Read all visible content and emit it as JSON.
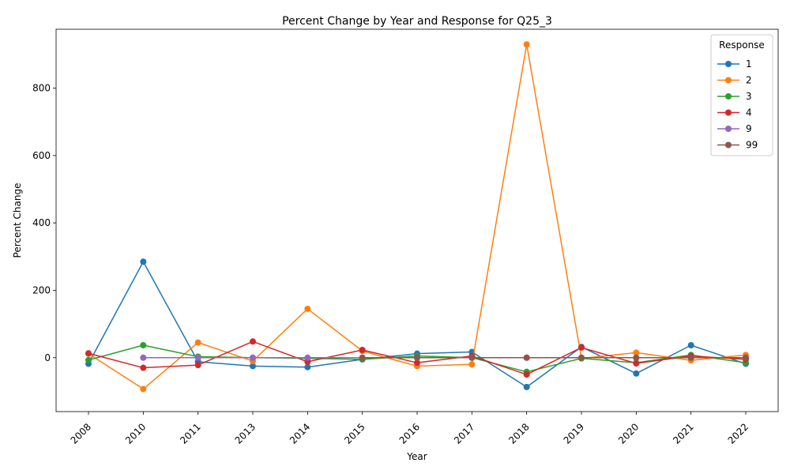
{
  "chart_data": {
    "type": "line",
    "title": "Percent Change by Year and Response for Q25_3",
    "xlabel": "Year",
    "ylabel": "Percent Change",
    "categories": [
      "2008",
      "2010",
      "2011",
      "2013",
      "2014",
      "2015",
      "2016",
      "2017",
      "2018",
      "2019",
      "2020",
      "2021",
      "2022"
    ],
    "yticks": [
      0,
      200,
      400,
      600,
      800
    ],
    "ylim": [
      -160,
      975
    ],
    "legend": {
      "title": "Response",
      "placement": "top-right"
    },
    "grid": false,
    "series": [
      {
        "name": "1",
        "color": "#1f77b4",
        "values": [
          -18,
          285,
          -12,
          -25,
          -28,
          -5,
          12,
          17,
          -87,
          32,
          -47,
          37,
          -18
        ]
      },
      {
        "name": "2",
        "color": "#ff7f0e",
        "values": [
          12,
          -93,
          45,
          -10,
          145,
          20,
          -25,
          -20,
          930,
          -2,
          15,
          -8,
          8
        ]
      },
      {
        "name": "3",
        "color": "#2ca02c",
        "values": [
          -7,
          37,
          3,
          0,
          -2,
          -5,
          5,
          0,
          -42,
          -2,
          -15,
          8,
          -15
        ]
      },
      {
        "name": "4",
        "color": "#d62728",
        "values": [
          13,
          -30,
          -22,
          48,
          -12,
          23,
          -15,
          5,
          -50,
          30,
          -17,
          5,
          -5
        ]
      },
      {
        "name": "9",
        "color": "#9467bd",
        "values": [
          null,
          0,
          0,
          0,
          0,
          0,
          0,
          0,
          0,
          0,
          0,
          0,
          0
        ]
      },
      {
        "name": "99",
        "color": "#8c564b",
        "values": [
          null,
          null,
          null,
          null,
          null,
          0,
          0,
          0,
          0,
          0,
          0,
          0,
          0
        ]
      }
    ]
  }
}
